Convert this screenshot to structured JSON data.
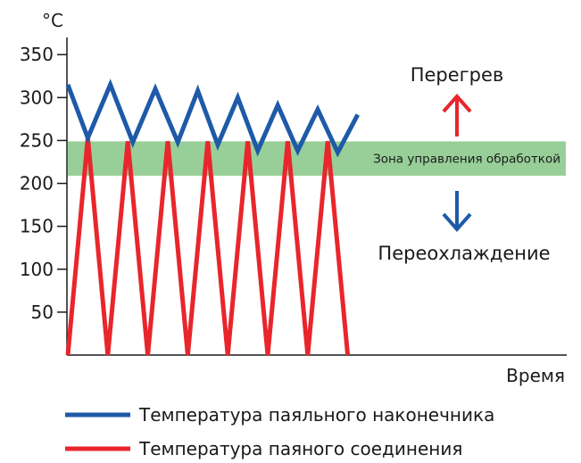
{
  "chart_data": {
    "type": "line",
    "title": "",
    "ylabel": "°C",
    "xlabel": "Время",
    "ylim": [
      0,
      370
    ],
    "xlim": [
      0,
      100
    ],
    "yticks": [
      50,
      100,
      150,
      200,
      250,
      300,
      350
    ],
    "grid": false,
    "legend_position": "bottom",
    "band": {
      "label": "Зона управления обработкой",
      "range": [
        210,
        250
      ],
      "color": "#98cf98"
    },
    "annotations": {
      "overheat": "Перегрев",
      "overcool": "Переохлаждение",
      "overheat_arrow_color": "#e8262c",
      "overcool_arrow_color": "#1e5aa8"
    },
    "series": [
      {
        "name": "Температура паяльного наконечника",
        "color": "#1e5aa8",
        "points": [
          [
            0,
            315
          ],
          [
            4,
            253
          ],
          [
            8.5,
            315
          ],
          [
            13,
            248
          ],
          [
            17.5,
            310
          ],
          [
            22,
            248
          ],
          [
            26,
            308
          ],
          [
            30,
            245
          ],
          [
            34,
            300
          ],
          [
            38,
            238
          ],
          [
            42,
            291
          ],
          [
            46,
            238
          ],
          [
            50,
            286
          ],
          [
            54,
            236
          ],
          [
            58,
            280
          ]
        ]
      },
      {
        "name": "Температура паяного соединения",
        "color": "#e8262c",
        "points": [
          [
            0,
            0
          ],
          [
            4,
            253
          ],
          [
            8,
            0
          ],
          [
            12,
            249
          ],
          [
            16,
            0
          ],
          [
            20,
            249
          ],
          [
            24,
            0
          ],
          [
            28,
            249
          ],
          [
            32,
            0
          ],
          [
            36,
            249
          ],
          [
            40,
            0
          ],
          [
            44,
            249
          ],
          [
            48,
            0
          ],
          [
            52,
            249
          ],
          [
            56,
            0
          ]
        ]
      }
    ]
  }
}
